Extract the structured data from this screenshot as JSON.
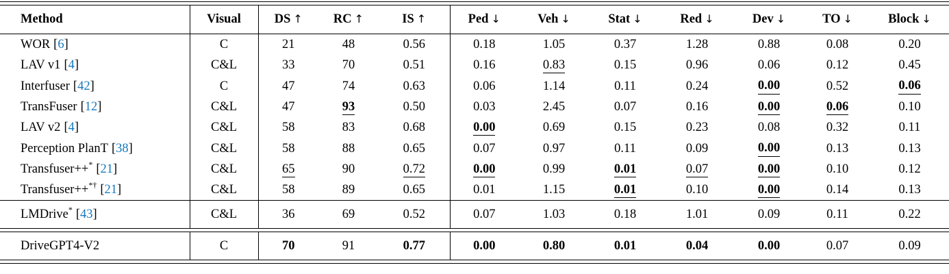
{
  "table": {
    "cite_open": "[",
    "cite_close": "]",
    "citation_color": "#1779be",
    "columns": [
      {
        "key": "method",
        "label": "Method",
        "arrow": ""
      },
      {
        "key": "visual",
        "label": "Visual",
        "arrow": ""
      },
      {
        "key": "ds",
        "label": "DS",
        "arrow": "↑"
      },
      {
        "key": "rc",
        "label": "RC",
        "arrow": "↑"
      },
      {
        "key": "is",
        "label": "IS",
        "arrow": "↑"
      },
      {
        "key": "ped",
        "label": "Ped",
        "arrow": "↓"
      },
      {
        "key": "veh",
        "label": "Veh",
        "arrow": "↓"
      },
      {
        "key": "stat",
        "label": "Stat",
        "arrow": "↓"
      },
      {
        "key": "red",
        "label": "Red",
        "arrow": "↓"
      },
      {
        "key": "dev",
        "label": "Dev",
        "arrow": "↓"
      },
      {
        "key": "to",
        "label": "TO",
        "arrow": "↓"
      },
      {
        "key": "block",
        "label": "Block",
        "arrow": "↓"
      }
    ],
    "groups": [
      {
        "rows": [
          {
            "method": "WOR",
            "sup": "",
            "cite": "6",
            "visual": "C",
            "cells": [
              {
                "v": "21",
                "s": ""
              },
              {
                "v": "48",
                "s": ""
              },
              {
                "v": "0.56",
                "s": ""
              },
              {
                "v": "0.18",
                "s": ""
              },
              {
                "v": "1.05",
                "s": ""
              },
              {
                "v": "0.37",
                "s": ""
              },
              {
                "v": "1.28",
                "s": ""
              },
              {
                "v": "0.88",
                "s": ""
              },
              {
                "v": "0.08",
                "s": ""
              },
              {
                "v": "0.20",
                "s": ""
              }
            ]
          },
          {
            "method": "LAV v1",
            "sup": "",
            "cite": "4",
            "visual": "C&L",
            "cells": [
              {
                "v": "33",
                "s": ""
              },
              {
                "v": "70",
                "s": ""
              },
              {
                "v": "0.51",
                "s": ""
              },
              {
                "v": "0.16",
                "s": ""
              },
              {
                "v": "0.83",
                "s": "u"
              },
              {
                "v": "0.15",
                "s": ""
              },
              {
                "v": "0.96",
                "s": ""
              },
              {
                "v": "0.06",
                "s": ""
              },
              {
                "v": "0.12",
                "s": ""
              },
              {
                "v": "0.45",
                "s": ""
              }
            ]
          },
          {
            "method": "Interfuser",
            "sup": "",
            "cite": "42",
            "visual": "C",
            "cells": [
              {
                "v": "47",
                "s": ""
              },
              {
                "v": "74",
                "s": ""
              },
              {
                "v": "0.63",
                "s": ""
              },
              {
                "v": "0.06",
                "s": ""
              },
              {
                "v": "1.14",
                "s": ""
              },
              {
                "v": "0.11",
                "s": ""
              },
              {
                "v": "0.24",
                "s": ""
              },
              {
                "v": "0.00",
                "s": "bu"
              },
              {
                "v": "0.52",
                "s": ""
              },
              {
                "v": "0.06",
                "s": "bu"
              }
            ]
          },
          {
            "method": "TransFuser",
            "sup": "",
            "cite": "12",
            "visual": "C&L",
            "cells": [
              {
                "v": "47",
                "s": ""
              },
              {
                "v": "93",
                "s": "bu"
              },
              {
                "v": "0.50",
                "s": ""
              },
              {
                "v": "0.03",
                "s": ""
              },
              {
                "v": "2.45",
                "s": ""
              },
              {
                "v": "0.07",
                "s": ""
              },
              {
                "v": "0.16",
                "s": ""
              },
              {
                "v": "0.00",
                "s": "bu"
              },
              {
                "v": "0.06",
                "s": "bu"
              },
              {
                "v": "0.10",
                "s": ""
              }
            ]
          },
          {
            "method": "LAV v2",
            "sup": "",
            "cite": "4",
            "visual": "C&L",
            "cells": [
              {
                "v": "58",
                "s": ""
              },
              {
                "v": "83",
                "s": ""
              },
              {
                "v": "0.68",
                "s": ""
              },
              {
                "v": "0.00",
                "s": "bu"
              },
              {
                "v": "0.69",
                "s": ""
              },
              {
                "v": "0.15",
                "s": ""
              },
              {
                "v": "0.23",
                "s": ""
              },
              {
                "v": "0.08",
                "s": ""
              },
              {
                "v": "0.32",
                "s": ""
              },
              {
                "v": "0.11",
                "s": ""
              }
            ]
          },
          {
            "method": "Perception PlanT",
            "sup": "",
            "cite": "38",
            "visual": "C&L",
            "cells": [
              {
                "v": "58",
                "s": ""
              },
              {
                "v": "88",
                "s": ""
              },
              {
                "v": "0.65",
                "s": ""
              },
              {
                "v": "0.07",
                "s": ""
              },
              {
                "v": "0.97",
                "s": ""
              },
              {
                "v": "0.11",
                "s": ""
              },
              {
                "v": "0.09",
                "s": ""
              },
              {
                "v": "0.00",
                "s": "bu"
              },
              {
                "v": "0.13",
                "s": ""
              },
              {
                "v": "0.13",
                "s": ""
              }
            ]
          },
          {
            "method": "Transfuser++",
            "sup": "*",
            "cite": "21",
            "visual": "C&L",
            "cells": [
              {
                "v": "65",
                "s": "u"
              },
              {
                "v": "90",
                "s": ""
              },
              {
                "v": "0.72",
                "s": "u"
              },
              {
                "v": "0.00",
                "s": "bu"
              },
              {
                "v": "0.99",
                "s": ""
              },
              {
                "v": "0.01",
                "s": "bu"
              },
              {
                "v": "0.07",
                "s": "u"
              },
              {
                "v": "0.00",
                "s": "bu"
              },
              {
                "v": "0.10",
                "s": ""
              },
              {
                "v": "0.12",
                "s": ""
              }
            ]
          },
          {
            "method": "Transfuser++",
            "sup": "*†",
            "cite": "21",
            "visual": "C&L",
            "cells": [
              {
                "v": "58",
                "s": ""
              },
              {
                "v": "89",
                "s": ""
              },
              {
                "v": "0.65",
                "s": ""
              },
              {
                "v": "0.01",
                "s": ""
              },
              {
                "v": "1.15",
                "s": ""
              },
              {
                "v": "0.01",
                "s": "bu"
              },
              {
                "v": "0.10",
                "s": ""
              },
              {
                "v": "0.00",
                "s": "bu"
              },
              {
                "v": "0.14",
                "s": ""
              },
              {
                "v": "0.13",
                "s": ""
              }
            ]
          }
        ]
      },
      {
        "rows": [
          {
            "method": "LMDrive",
            "sup": "*",
            "cite": "43",
            "visual": "C&L",
            "cells": [
              {
                "v": "36",
                "s": ""
              },
              {
                "v": "69",
                "s": ""
              },
              {
                "v": "0.52",
                "s": ""
              },
              {
                "v": "0.07",
                "s": ""
              },
              {
                "v": "1.03",
                "s": ""
              },
              {
                "v": "0.18",
                "s": ""
              },
              {
                "v": "1.01",
                "s": ""
              },
              {
                "v": "0.09",
                "s": ""
              },
              {
                "v": "0.11",
                "s": ""
              },
              {
                "v": "0.22",
                "s": ""
              }
            ]
          }
        ]
      },
      {
        "rows": [
          {
            "method": "DriveGPT4-V2",
            "sup": "",
            "cite": "",
            "visual": "C",
            "cells": [
              {
                "v": "70",
                "s": "b"
              },
              {
                "v": "91",
                "s": ""
              },
              {
                "v": "0.77",
                "s": "b"
              },
              {
                "v": "0.00",
                "s": "b"
              },
              {
                "v": "0.80",
                "s": "b"
              },
              {
                "v": "0.01",
                "s": "b"
              },
              {
                "v": "0.04",
                "s": "b"
              },
              {
                "v": "0.00",
                "s": "b"
              },
              {
                "v": "0.07",
                "s": ""
              },
              {
                "v": "0.09",
                "s": ""
              }
            ]
          }
        ]
      }
    ]
  }
}
